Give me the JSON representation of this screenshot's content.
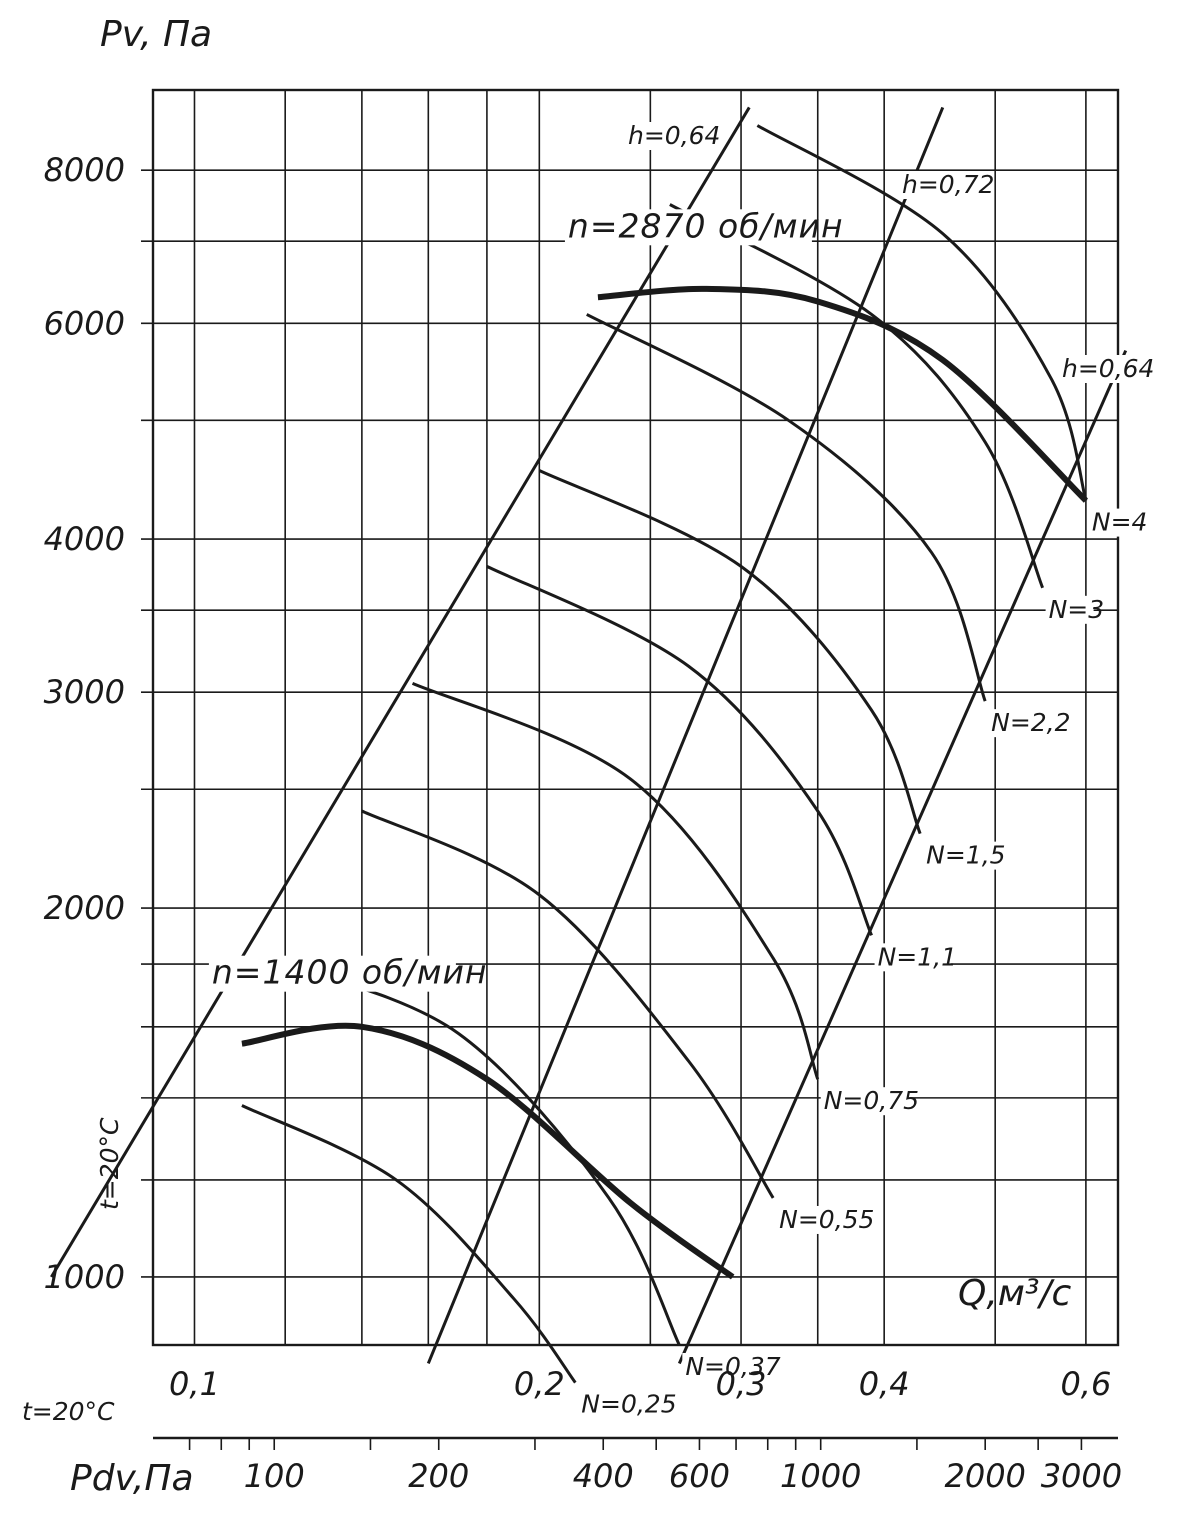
{
  "chart_data": {
    "type": "line",
    "y_axis_title": "Pv, Па",
    "x_axis_title": "Q,м³/с",
    "pdv_axis_title": "Pdv,Па",
    "temperature_note": "t=20°C",
    "temperature_note_left": "t=20°C",
    "y_ticks": [
      {
        "value": 1000,
        "label": "1000"
      },
      {
        "value": 2000,
        "label": "2000"
      },
      {
        "value": 3000,
        "label": "3000"
      },
      {
        "value": 4000,
        "label": "4000"
      },
      {
        "value": 6000,
        "label": "6000"
      },
      {
        "value": 8000,
        "label": "8000"
      }
    ],
    "x_ticks": [
      {
        "value": 0.1,
        "label": "0,1"
      },
      {
        "value": 0.2,
        "label": "0,2"
      },
      {
        "value": 0.3,
        "label": "0,3"
      },
      {
        "value": 0.4,
        "label": "0,4"
      },
      {
        "value": 0.6,
        "label": "0,6"
      }
    ],
    "pdv_ticks": [
      {
        "value": 100,
        "label": "100"
      },
      {
        "value": 200,
        "label": "200"
      },
      {
        "value": 400,
        "label": "400"
      },
      {
        "value": 600,
        "label": "600"
      },
      {
        "value": 1000,
        "label": "1000"
      },
      {
        "value": 2000,
        "label": "2000"
      },
      {
        "value": 3000,
        "label": "3000"
      }
    ],
    "speed_curves": [
      {
        "name": "n=1400 об/мин",
        "label": "n=1400 об/мин",
        "points": [
          [
            0.11,
            1550
          ],
          [
            0.14,
            1600
          ],
          [
            0.18,
            1450
          ],
          [
            0.24,
            1150
          ],
          [
            0.295,
            1000
          ]
        ]
      },
      {
        "name": "n=2870 об/мин",
        "label": "n=2870 об/мин",
        "points": [
          [
            0.225,
            6300
          ],
          [
            0.28,
            6400
          ],
          [
            0.35,
            6250
          ],
          [
            0.45,
            5600
          ],
          [
            0.6,
            4300
          ]
        ]
      }
    ],
    "power_curves": [
      {
        "label": "N=0,25",
        "points": [
          [
            0.11,
            1380
          ],
          [
            0.15,
            1200
          ],
          [
            0.19,
            960
          ],
          [
            0.215,
            820
          ]
        ]
      },
      {
        "label": "N=0,37",
        "points": [
          [
            0.12,
            1800
          ],
          [
            0.17,
            1580
          ],
          [
            0.23,
            1160
          ],
          [
            0.265,
            880
          ]
        ]
      },
      {
        "label": "N=0,55",
        "points": [
          [
            0.14,
            2400
          ],
          [
            0.2,
            2050
          ],
          [
            0.27,
            1500
          ],
          [
            0.32,
            1160
          ]
        ]
      },
      {
        "label": "N=0,75",
        "points": [
          [
            0.155,
            3050
          ],
          [
            0.24,
            2550
          ],
          [
            0.32,
            1820
          ],
          [
            0.35,
            1450
          ]
        ]
      },
      {
        "label": "N=1,1",
        "points": [
          [
            0.18,
            3800
          ],
          [
            0.27,
            3150
          ],
          [
            0.35,
            2400
          ],
          [
            0.39,
            1900
          ]
        ]
      },
      {
        "label": "N=1,5",
        "points": [
          [
            0.2,
            4550
          ],
          [
            0.3,
            3800
          ],
          [
            0.39,
            2900
          ],
          [
            0.43,
            2300
          ]
        ]
      },
      {
        "label": "N=2,2",
        "points": [
          [
            0.22,
            6100
          ],
          [
            0.33,
            5000
          ],
          [
            0.44,
            3900
          ],
          [
            0.49,
            2950
          ]
        ]
      },
      {
        "label": "N=3",
        "points": [
          [
            0.26,
            7500
          ],
          [
            0.39,
            6100
          ],
          [
            0.49,
            4800
          ],
          [
            0.55,
            3650
          ]
        ]
      },
      {
        "label": "N=4",
        "points": [
          [
            0.31,
            8700
          ],
          [
            0.45,
            7100
          ],
          [
            0.56,
            5400
          ],
          [
            0.6,
            4300
          ]
        ]
      }
    ],
    "efficiency_lines": [
      {
        "label": "h=0,64",
        "points": [
          [
            0.075,
            1000
          ],
          [
            0.305,
            9000
          ]
        ]
      },
      {
        "label": "h=0,72",
        "points": [
          [
            0.16,
            850
          ],
          [
            0.45,
            9000
          ]
        ]
      },
      {
        "label": "h=0,64",
        "points": [
          [
            0.265,
            850
          ],
          [
            0.65,
            5700
          ]
        ]
      }
    ],
    "grid": true
  }
}
